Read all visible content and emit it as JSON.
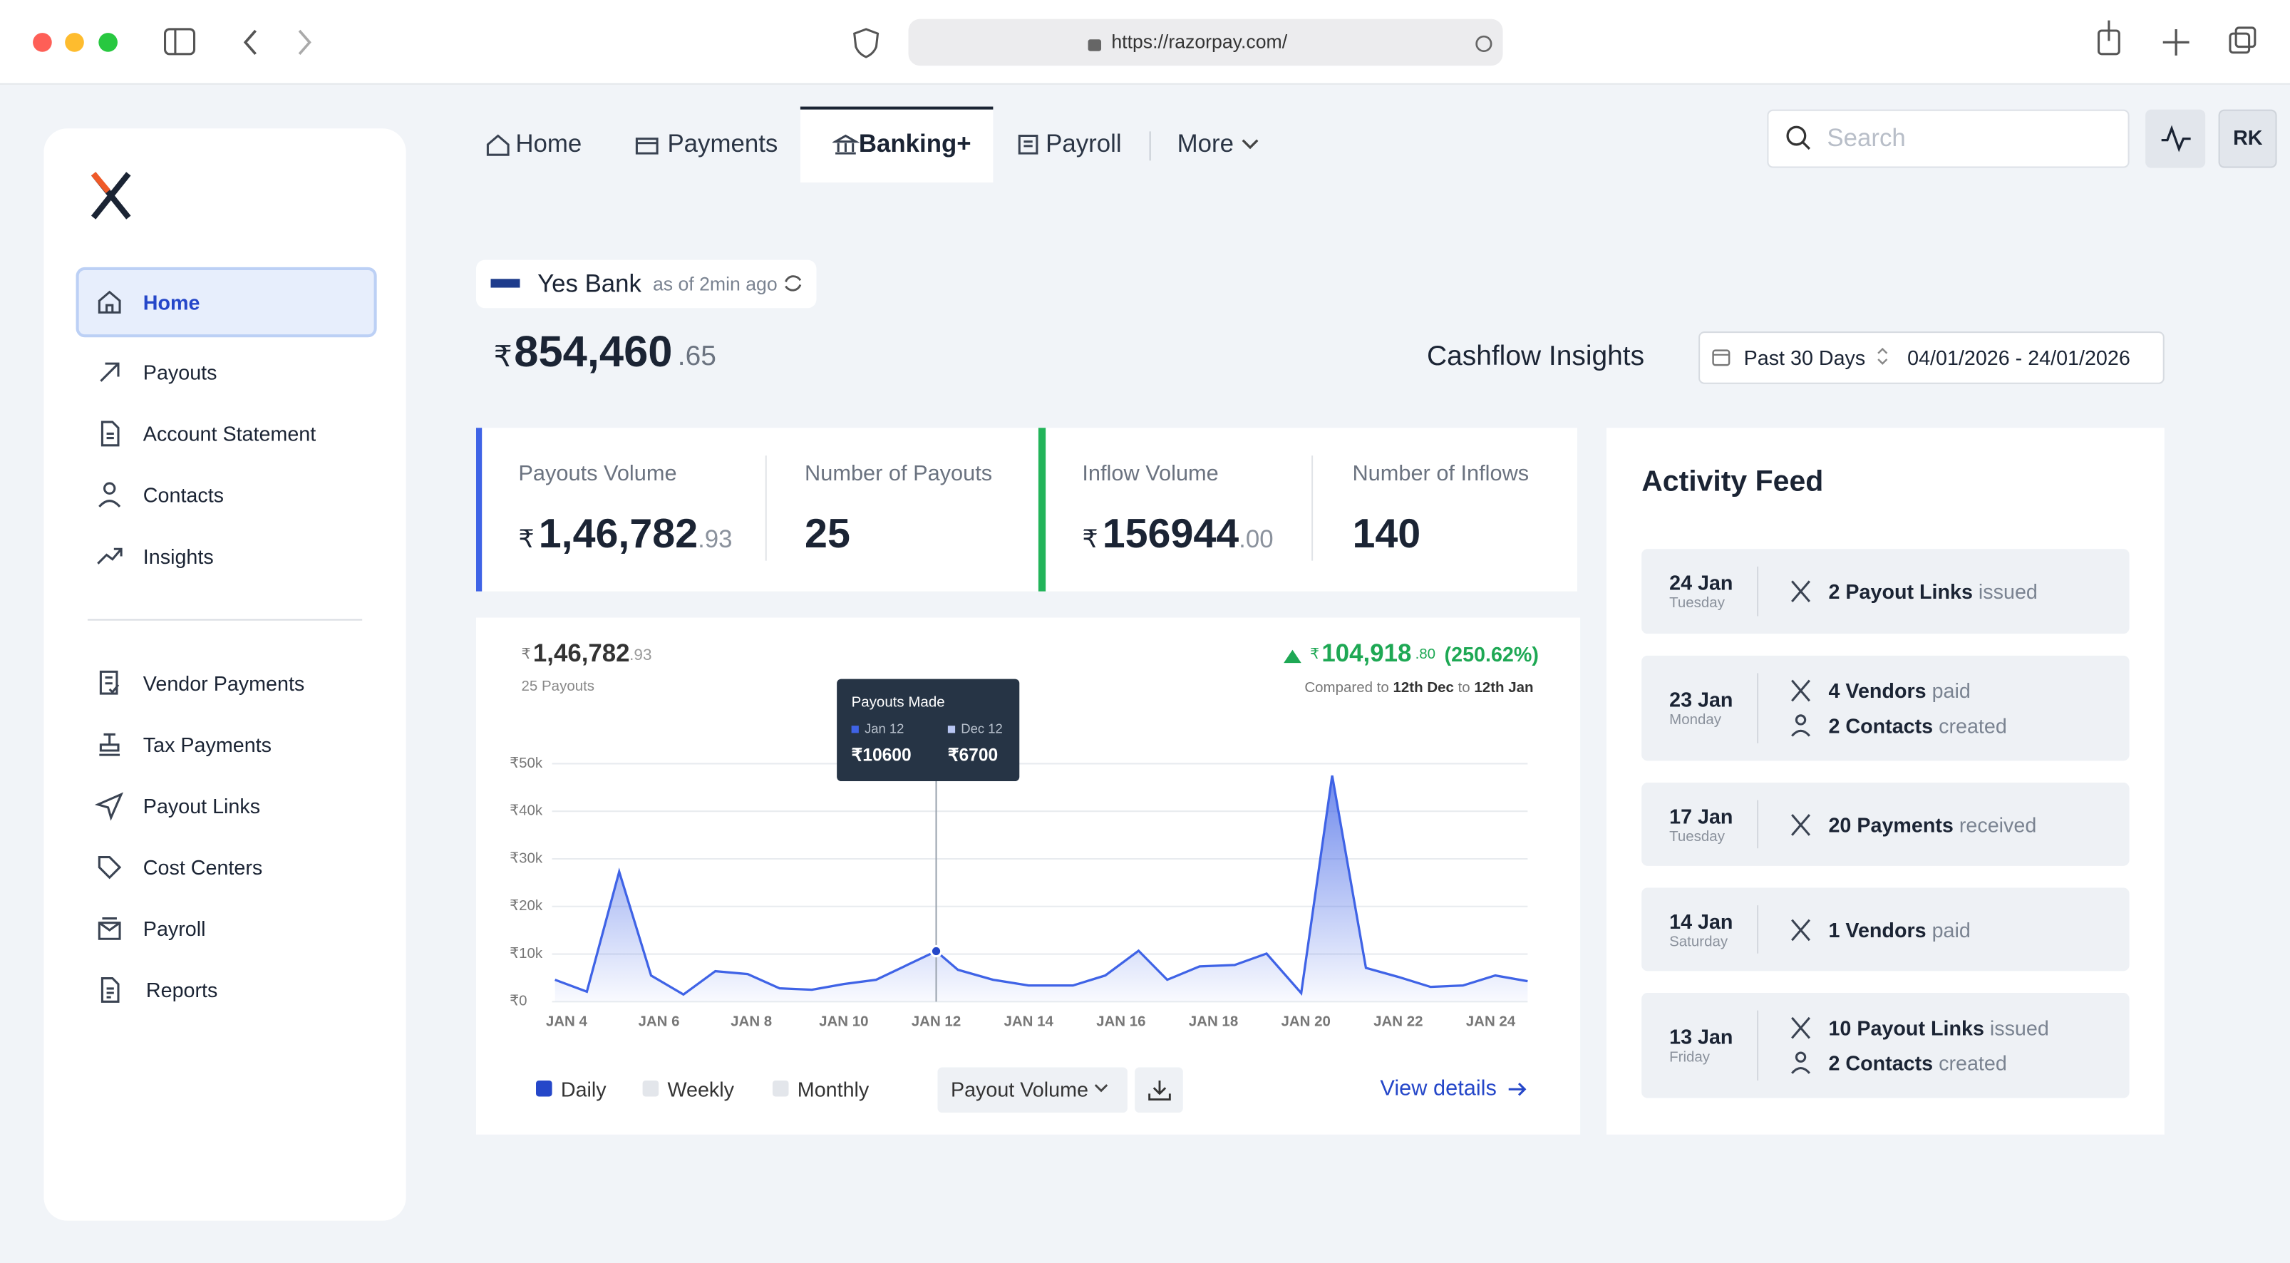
{
  "browser": {
    "url": "https://razorpay.com/"
  },
  "nav": {
    "tabs": [
      "Home",
      "Payments",
      "Banking+",
      "Payroll"
    ],
    "more": "More",
    "search_placeholder": "Search",
    "avatar": "RK"
  },
  "sidebar": {
    "main": [
      "Home",
      "Payouts",
      "Account Statement",
      "Contacts",
      "Insights"
    ],
    "secondary": [
      "Vendor Payments",
      "Tax Payments",
      "Payout Links",
      "Cost Centers",
      "Payroll",
      "Reports"
    ]
  },
  "bank": {
    "name": "Yes Bank",
    "updated": "as of 2min ago",
    "currency": "₹",
    "balance": "854,460",
    "balance_decimal": ".65"
  },
  "cashflow": {
    "title": "Cashflow Insights",
    "range": "Past 30 Days",
    "dates": "04/01/2026 - 24/01/2026"
  },
  "stats": [
    {
      "label": "Payouts Volume",
      "currency": "₹",
      "value": "1,46,782",
      "decimal": ".93"
    },
    {
      "label": "Number of Payouts",
      "value": "25"
    },
    {
      "label": "Inflow Volume",
      "currency": "₹",
      "value": "156944",
      "decimal": ".00"
    },
    {
      "label": "Number of Inflows",
      "value": "140"
    }
  ],
  "chart_panel": {
    "total": "1,46,782",
    "total_decimal": ".93",
    "subtitle": "25 Payouts",
    "change": "104,918",
    "change_decimal": ".80",
    "change_pct": "(250.62%)",
    "compare_prefix": "Compared to",
    "compare_from": "12th Dec",
    "compare_mid": "to",
    "compare_to": "12th Jan",
    "tooltip": {
      "title": "Payouts Made",
      "current_label": "Jan 12",
      "previous_label": "Dec 12",
      "current_value": "₹10600",
      "previous_value": "₹6700"
    },
    "periods": [
      "Daily",
      "Weekly",
      "Monthly"
    ],
    "metric": "Payout Volume",
    "view_details": "View details"
  },
  "chart_data": {
    "type": "area",
    "color": "#3f63e6",
    "x": [
      3.75,
      4.44,
      5.14,
      5.83,
      6.53,
      7.22,
      7.92,
      8.61,
      9.31,
      10.0,
      10.7,
      12.0,
      12.47,
      13.23,
      14.0,
      14.96,
      15.66,
      16.38,
      17.0,
      17.7,
      18.46,
      19.15,
      19.9,
      20.57,
      21.3,
      22.0,
      22.7,
      23.4,
      24.1,
      24.8
    ],
    "values": [
      4600,
      2100,
      27300,
      5500,
      1500,
      6400,
      5800,
      2800,
      2500,
      3700,
      4600,
      10600,
      6700,
      4600,
      3400,
      3400,
      5500,
      10700,
      4600,
      7400,
      7700,
      10100,
      1800,
      47500,
      7100,
      5200,
      3100,
      3400,
      5500,
      4300
    ],
    "xlim": [
      3.75,
      24.8
    ],
    "xticks": [
      {
        "value": 4,
        "label": "JAN 4"
      },
      {
        "value": 6,
        "label": "JAN 6"
      },
      {
        "value": 8,
        "label": "JAN 8"
      },
      {
        "value": 10,
        "label": "JAN 10"
      },
      {
        "value": 12,
        "label": "JAN 12"
      },
      {
        "value": 14,
        "label": "JAN 14"
      },
      {
        "value": 16,
        "label": "JAN 16"
      },
      {
        "value": 18,
        "label": "JAN 18"
      },
      {
        "value": 20,
        "label": "JAN 20"
      },
      {
        "value": 22,
        "label": "JAN 22"
      },
      {
        "value": 24,
        "label": "JAN 24"
      }
    ],
    "ylim": [
      0,
      50000
    ],
    "yticks": [
      {
        "value": 0,
        "label": "₹0"
      },
      {
        "value": 10000,
        "label": "₹10k"
      },
      {
        "value": 20000,
        "label": "₹20k"
      },
      {
        "value": 30000,
        "label": "₹30k"
      },
      {
        "value": 40000,
        "label": "₹40k"
      },
      {
        "value": 50000,
        "label": "₹50k"
      }
    ],
    "grid": true
  },
  "activity": {
    "title": "Activity Feed",
    "items": [
      {
        "date": "24 Jan",
        "day": "Tuesday",
        "lines": [
          {
            "count": "2 Payout Links",
            "verb": "issued"
          }
        ]
      },
      {
        "date": "23 Jan",
        "day": "Monday",
        "lines": [
          {
            "count": "4 Vendors",
            "verb": "paid"
          },
          {
            "count": "2 Contacts",
            "verb": "created"
          }
        ]
      },
      {
        "date": "17 Jan",
        "day": "Tuesday",
        "lines": [
          {
            "count": "20 Payments",
            "verb": "received"
          }
        ]
      },
      {
        "date": "14 Jan",
        "day": "Saturday",
        "lines": [
          {
            "count": "1 Vendors",
            "verb": "paid"
          }
        ]
      },
      {
        "date": "13 Jan",
        "day": "Friday",
        "lines": [
          {
            "count": "10 Payout Links",
            "verb": "issued"
          },
          {
            "count": "2 Contacts",
            "verb": "created"
          }
        ]
      }
    ]
  }
}
